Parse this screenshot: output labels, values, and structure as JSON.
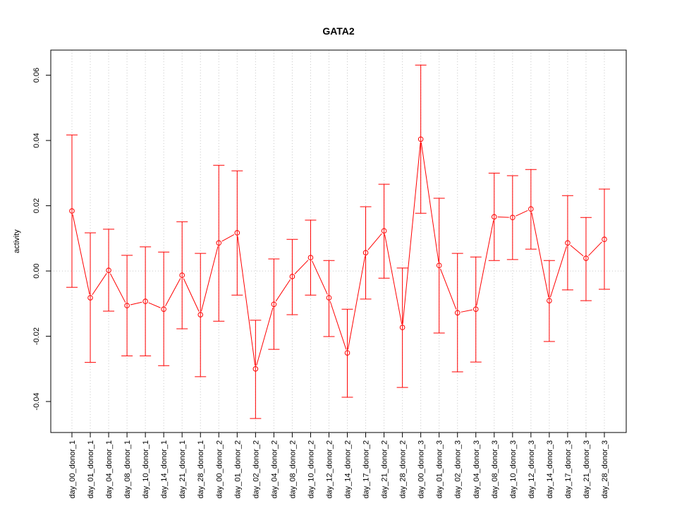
{
  "chart_data": {
    "type": "line",
    "title": "GATA2",
    "xlabel": "",
    "ylabel": "activity",
    "ylim": [
      -0.0495,
      0.0677
    ],
    "yticks": [
      -0.04,
      -0.02,
      0.0,
      0.02,
      0.04,
      0.06
    ],
    "ytick_labels": [
      "-0.04",
      "-0.02",
      "0.00",
      "0.02",
      "0.04",
      "0.06"
    ],
    "grid": true,
    "color": "#ff0000",
    "categories": [
      "day_00_donor_1",
      "day_01_donor_1",
      "day_04_donor_1",
      "day_08_donor_1",
      "day_10_donor_1",
      "day_14_donor_1",
      "day_21_donor_1",
      "day_28_donor_1",
      "day_00_donor_2",
      "day_01_donor_2",
      "day_02_donor_2",
      "day_04_donor_2",
      "day_08_donor_2",
      "day_10_donor_2",
      "day_12_donor_2",
      "day_14_donor_2",
      "day_17_donor_2",
      "day_21_donor_2",
      "day_28_donor_2",
      "day_00_donor_3",
      "day_01_donor_3",
      "day_02_donor_3",
      "day_04_donor_3",
      "day_08_donor_3",
      "day_10_donor_3",
      "day_12_donor_3",
      "day_14_donor_3",
      "day_17_donor_3",
      "day_21_donor_3",
      "day_28_donor_3"
    ],
    "values": [
      0.0184,
      -0.0082,
      0.0002,
      -0.0106,
      -0.0093,
      -0.0117,
      -0.0013,
      -0.0134,
      0.0086,
      0.0117,
      -0.03,
      -0.0102,
      -0.0017,
      0.0041,
      -0.0082,
      -0.0251,
      0.0056,
      0.0123,
      -0.0173,
      0.0404,
      0.0017,
      -0.0128,
      -0.0117,
      0.0166,
      0.0164,
      0.019,
      -0.0091,
      0.0086,
      0.0039,
      0.0097
    ],
    "upper": [
      0.0417,
      0.0117,
      0.0128,
      0.0048,
      0.0074,
      0.0058,
      0.0151,
      0.0054,
      0.0324,
      0.0307,
      -0.0151,
      0.0037,
      0.0097,
      0.0156,
      0.0032,
      -0.0117,
      0.0197,
      0.0266,
      0.0009,
      0.0631,
      0.0223,
      0.0054,
      0.0043,
      0.03,
      0.0292,
      0.0311,
      0.0032,
      0.0231,
      0.0164,
      0.0251
    ],
    "lower": [
      -0.005,
      -0.028,
      -0.0123,
      -0.026,
      -0.026,
      -0.029,
      -0.0177,
      -0.0324,
      -0.0154,
      -0.0074,
      -0.0452,
      -0.024,
      -0.0134,
      -0.0074,
      -0.0201,
      -0.0387,
      -0.0086,
      -0.0022,
      -0.0357,
      0.0177,
      -0.019,
      -0.0309,
      -0.0279,
      0.0032,
      0.0035,
      0.0067,
      -0.0216,
      -0.0058,
      -0.0091,
      -0.0056
    ]
  }
}
